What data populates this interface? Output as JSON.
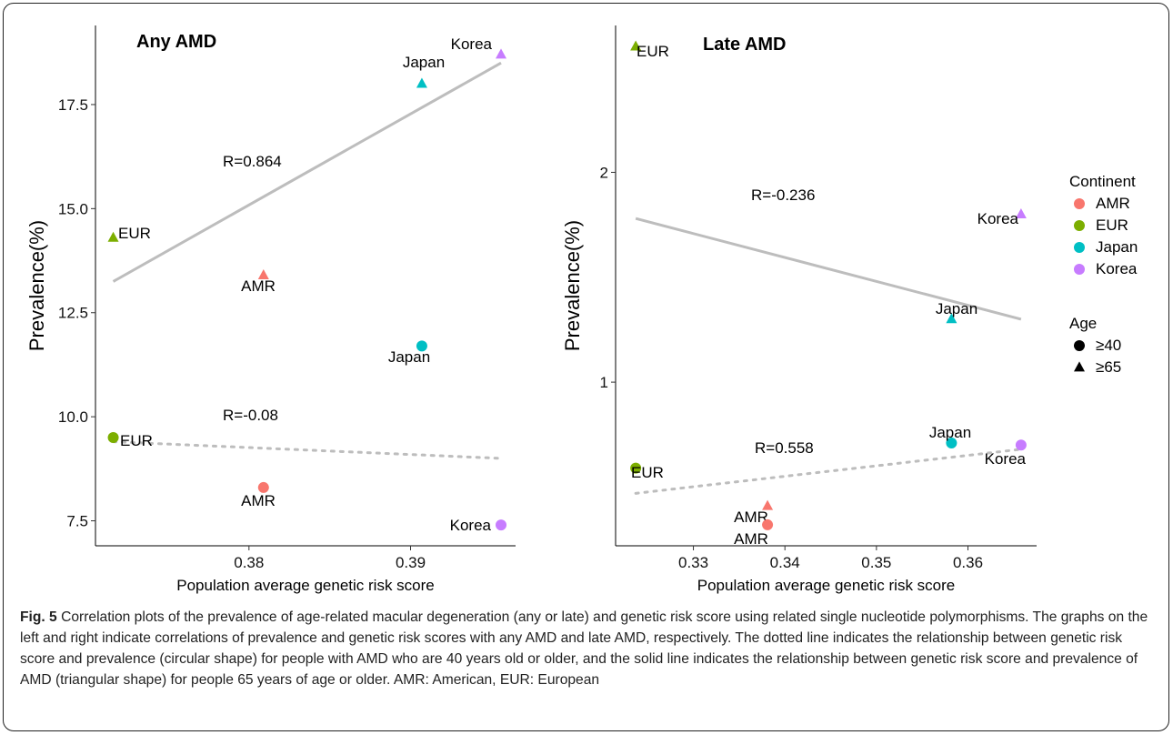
{
  "chart_data": [
    {
      "type": "scatter",
      "title": "Any AMD",
      "xlabel": "Population average genetic risk score",
      "ylabel": "Prevalence(%)",
      "xlim": [
        0.3705,
        0.3965
      ],
      "ylim": [
        6.9,
        19.4
      ],
      "xticks": [
        0.38,
        0.39
      ],
      "xtick_labels": [
        "0.38",
        "0.39"
      ],
      "yticks": [
        7.5,
        10.0,
        12.5,
        15.0,
        17.5
      ],
      "ytick_labels": [
        "7.5",
        "10.0",
        "12.5",
        "15.0",
        "17.5"
      ],
      "grid": false,
      "points": [
        {
          "label": "EUR",
          "continent": "EUR",
          "age": "≥65",
          "x": 0.3716,
          "y": 14.3
        },
        {
          "label": "AMR",
          "continent": "AMR",
          "age": "≥65",
          "x": 0.3809,
          "y": 13.4
        },
        {
          "label": "Japan",
          "continent": "Japan",
          "age": "≥65",
          "x": 0.3907,
          "y": 18.0
        },
        {
          "label": "Korea",
          "continent": "Korea",
          "age": "≥65",
          "x": 0.3956,
          "y": 18.7
        },
        {
          "label": "EUR",
          "continent": "EUR",
          "age": "≥40",
          "x": 0.3716,
          "y": 9.5
        },
        {
          "label": "AMR",
          "continent": "AMR",
          "age": "≥40",
          "x": 0.3809,
          "y": 8.3
        },
        {
          "label": "Japan",
          "continent": "Japan",
          "age": "≥40",
          "x": 0.3907,
          "y": 11.7
        },
        {
          "label": "Korea",
          "continent": "Korea",
          "age": "≥40",
          "x": 0.3956,
          "y": 7.4
        }
      ],
      "fit_lines": [
        {
          "age": "≥65",
          "style": "solid",
          "r_label": "R=0.864",
          "x": [
            0.3716,
            0.3956
          ],
          "y": [
            13.25,
            18.5
          ]
        },
        {
          "age": "≥40",
          "style": "dotted",
          "r_label": "R=-0.08",
          "x": [
            0.3716,
            0.3956
          ],
          "y": [
            9.4,
            9.0
          ]
        }
      ]
    },
    {
      "type": "scatter",
      "title": "Late AMD",
      "xlabel": "Population average genetic risk score",
      "ylabel": "Prevalence(%)",
      "xlim": [
        0.3215,
        0.3675
      ],
      "ylim": [
        0.22,
        2.7
      ],
      "xticks": [
        0.33,
        0.34,
        0.35,
        0.36
      ],
      "xtick_labels": [
        "0.33",
        "0.34",
        "0.35",
        "0.36"
      ],
      "yticks": [
        1,
        2
      ],
      "ytick_labels": [
        "1",
        "2"
      ],
      "grid": false,
      "points": [
        {
          "label": "EUR",
          "continent": "EUR",
          "age": "≥65",
          "x": 0.3237,
          "y": 2.6
        },
        {
          "label": "AMR",
          "continent": "AMR",
          "age": "≥65",
          "x": 0.3381,
          "y": 0.41
        },
        {
          "label": "Japan",
          "continent": "Japan",
          "age": "≥65",
          "x": 0.3582,
          "y": 1.3
        },
        {
          "label": "Korea",
          "continent": "Korea",
          "age": "≥65",
          "x": 0.3658,
          "y": 1.8
        },
        {
          "label": "EUR",
          "continent": "EUR",
          "age": "≥40",
          "x": 0.3237,
          "y": 0.59
        },
        {
          "label": "AMR",
          "continent": "AMR",
          "age": "≥40",
          "x": 0.3381,
          "y": 0.32
        },
        {
          "label": "Japan",
          "continent": "Japan",
          "age": "≥40",
          "x": 0.3582,
          "y": 0.71
        },
        {
          "label": "Korea",
          "continent": "Korea",
          "age": "≥40",
          "x": 0.3658,
          "y": 0.7
        }
      ],
      "fit_lines": [
        {
          "age": "≥65",
          "style": "solid",
          "r_label": "R=-0.236",
          "x": [
            0.3237,
            0.3658
          ],
          "y": [
            1.78,
            1.3
          ]
        },
        {
          "age": "≥40",
          "style": "dotted",
          "r_label": "R=0.558",
          "x": [
            0.3237,
            0.3658
          ],
          "y": [
            0.47,
            0.68
          ]
        }
      ]
    }
  ],
  "legend": {
    "placement": "right",
    "continent_title": "Continent",
    "continents": [
      {
        "name": "AMR",
        "color": "#F8766D"
      },
      {
        "name": "EUR",
        "color": "#7CAE00"
      },
      {
        "name": "Japan",
        "color": "#00BFC4"
      },
      {
        "name": "Korea",
        "color": "#C77CFF"
      }
    ],
    "age_title": "Age",
    "ages": [
      {
        "name": "≥40",
        "shape": "circle"
      },
      {
        "name": "≥65",
        "shape": "triangle"
      }
    ]
  },
  "line_color": "#bdbdbd",
  "caption": {
    "label": "Fig. 5",
    "text": "Correlation plots of the prevalence of age-related macular degeneration (any or late) and genetic risk score using related single nucleotide polymorphisms. The graphs on the left and right indicate correlations of prevalence and genetic risk scores with any AMD and late AMD, respectively. The dotted line indicates the relationship between genetic risk score and prevalence (circular shape) for people with AMD who are 40 years old or older, and the solid line indicates the relationship between genetic risk score and prevalence of AMD (triangular shape) for people 65 years of age or older. AMR: American, EUR: European"
  }
}
